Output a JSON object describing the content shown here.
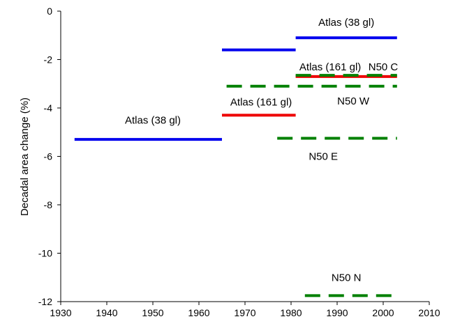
{
  "chart_data": {
    "type": "line",
    "title": "",
    "xlabel": "",
    "ylabel": "Decadal area change (%)",
    "xlim": [
      1930,
      2010
    ],
    "ylim": [
      -12,
      0
    ],
    "x_ticks": [
      1930,
      1940,
      1950,
      1960,
      1970,
      1980,
      1990,
      2000,
      2010
    ],
    "y_ticks": [
      0,
      -2,
      -4,
      -6,
      -8,
      -10,
      -12
    ],
    "grid": false,
    "legend": "none",
    "series": [
      {
        "label": "Atlas (38 gl)",
        "color": "#0000ee",
        "style": "solid",
        "x": [
          1933,
          1965
        ],
        "y": [
          -5.3,
          -5.3
        ]
      },
      {
        "label": "",
        "color": "#0000ee",
        "style": "solid",
        "x": [
          1965,
          1981
        ],
        "y": [
          -1.6,
          -1.6
        ]
      },
      {
        "label": "Atlas (38 gl)",
        "color": "#0000ee",
        "style": "solid",
        "x": [
          1981,
          2003
        ],
        "y": [
          -1.1,
          -1.1
        ]
      },
      {
        "label": "Atlas (161 gl)",
        "color": "#ee0000",
        "style": "solid",
        "x": [
          1965,
          1981
        ],
        "y": [
          -4.3,
          -4.3
        ]
      },
      {
        "label": "Atlas (161 gl)",
        "color": "#ee0000",
        "style": "solid",
        "x": [
          1981,
          2003
        ],
        "y": [
          -2.7,
          -2.7
        ]
      },
      {
        "label": "N50 C",
        "color": "#008000",
        "style": "dashed",
        "x": [
          1981,
          2003
        ],
        "y": [
          -2.65,
          -2.65
        ]
      },
      {
        "label": "N50 W",
        "color": "#008000",
        "style": "dashed",
        "x": [
          1966,
          2003
        ],
        "y": [
          -3.1,
          -3.1
        ]
      },
      {
        "label": "N50 E",
        "color": "#008000",
        "style": "dashed",
        "x": [
          1977,
          2003
        ],
        "y": [
          -5.25,
          -5.25
        ]
      },
      {
        "label": "N50 N",
        "color": "#008000",
        "style": "dashed",
        "x": [
          1983,
          2003
        ],
        "y": [
          -11.75,
          -11.75
        ]
      }
    ],
    "annotations": [
      {
        "text": "Atlas (38 gl)",
        "x": 1950,
        "y": -4.65
      },
      {
        "text": "Atlas (38 gl)",
        "x": 1992,
        "y": -0.6
      },
      {
        "text": "Atlas (161 gl)",
        "x": 1973.5,
        "y": -3.9
      },
      {
        "text": "Atlas (161 gl)",
        "x": 1988.5,
        "y": -2.45
      },
      {
        "text": "N50 C",
        "x": 2000,
        "y": -2.45
      },
      {
        "text": "N50 W",
        "x": 1993.5,
        "y": -3.85
      },
      {
        "text": "N50 E",
        "x": 1987,
        "y": -6.15
      },
      {
        "text": "N50 N",
        "x": 1992,
        "y": -11.15
      }
    ]
  }
}
